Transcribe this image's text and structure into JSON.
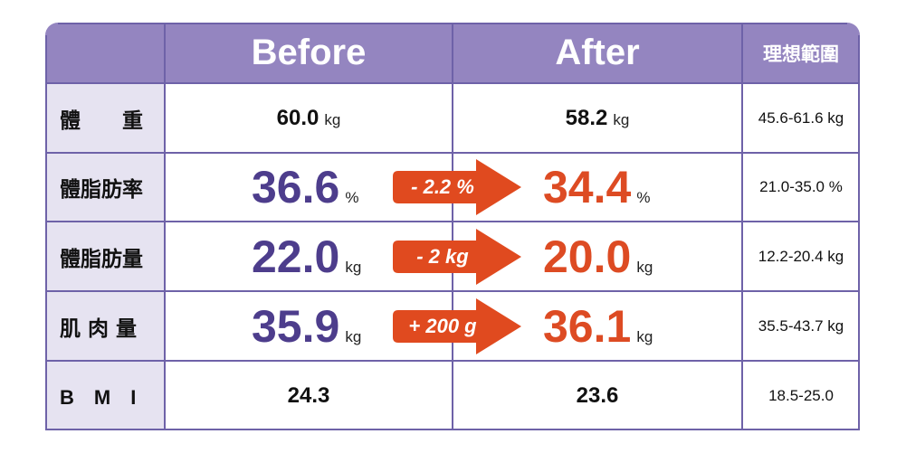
{
  "header": {
    "before": "Before",
    "after": "After",
    "ideal": "理想範圍"
  },
  "rows": [
    {
      "label": "體　　重",
      "before": "60.0",
      "before_unit": "kg",
      "after": "58.2",
      "after_unit": "kg",
      "change": "",
      "ideal": "45.6-61.6 kg"
    },
    {
      "label": "體脂肪率",
      "before": "36.6",
      "before_unit": "%",
      "after": "34.4",
      "after_unit": "%",
      "change": "- 2.2 %",
      "ideal": "21.0-35.0 %"
    },
    {
      "label": "體脂肪量",
      "before": "22.0",
      "before_unit": "kg",
      "after": "20.0",
      "after_unit": "kg",
      "change": "- 2 kg",
      "ideal": "12.2-20.4 kg"
    },
    {
      "label": "肌 肉 量",
      "before": "35.9",
      "before_unit": "kg",
      "after": "36.1",
      "after_unit": "kg",
      "change": "+ 200 g",
      "ideal": "35.5-43.7 kg"
    },
    {
      "label": "B　M　I",
      "before": "24.3",
      "before_unit": "",
      "after": "23.6",
      "after_unit": "",
      "change": "",
      "ideal": "18.5-25.0"
    }
  ],
  "colors": {
    "header_bg": "#9485c0",
    "label_bg": "#e6e3f1",
    "before_text": "#4d3d8c",
    "after_text": "#dd4b23",
    "arrow": "#e04a1f",
    "grid": "#6e62a8"
  }
}
